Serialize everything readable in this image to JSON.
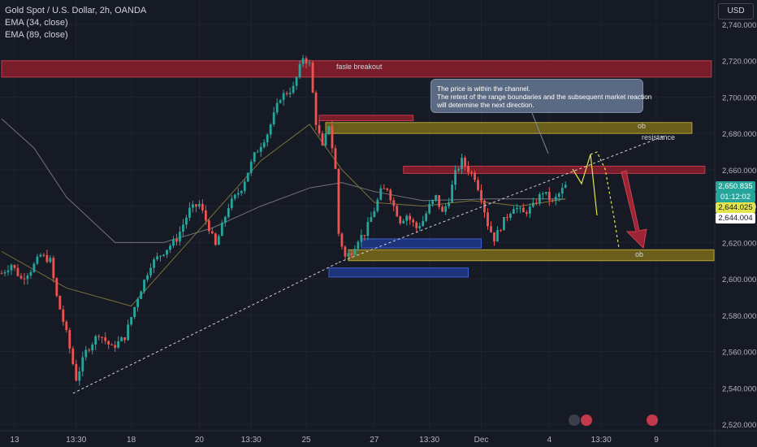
{
  "header": {
    "symbol_line": "Gold Spot / U.S. Dollar, 2h, OANDA",
    "ema1": "EMA (34, close)",
    "ema2": "EMA (89, close)"
  },
  "currency_button": "USD",
  "annotations": {
    "breakout_label": "fasle breakout",
    "ob_upper": "ob",
    "ob_lower": "ob",
    "resistance": "resistance",
    "callout_line1": "The price is within the channel.",
    "callout_line2": "The retest of the range boundaries and the subsequent market reaction",
    "callout_line3": "will determine the next direction."
  },
  "price_tags": {
    "last": "2,650.835",
    "countdown": "01:12:02",
    "ema34": "2,644.025",
    "ema89": "2,644.004"
  },
  "colors": {
    "background": "#161a25",
    "up": "#26a69a",
    "down": "#ef5350",
    "supply_zone": "#8b1e2c",
    "ob_zone": "#7a6b1a",
    "demand_blue": "#1e3a8a",
    "ema34": "#8a7b3a",
    "ema89": "#8a8a8a",
    "projection": "#e3e34a",
    "arrow": "#b3263a"
  },
  "chart_data": {
    "type": "candlestick",
    "title": "Gold Spot / U.S. Dollar, 2h, OANDA",
    "ylim": [
      2515,
      2752
    ],
    "y_ticks": [
      "2,740.000",
      "2,720.000",
      "2,700.000",
      "2,680.000",
      "2,660.000",
      "2,640.000",
      "2,620.000",
      "2,600.000",
      "2,580.000",
      "2,560.000",
      "2,540.000",
      "2,520.000"
    ],
    "y_tick_values": [
      2740,
      2720,
      2700,
      2680,
      2660,
      2640,
      2620,
      2600,
      2580,
      2560,
      2540,
      2520
    ],
    "x_ticks": [
      "13",
      "13:30",
      "18",
      "20",
      "13:30",
      "25",
      "27",
      "13:30",
      "Dec",
      "4",
      "13:30",
      "9"
    ],
    "x_tick_bar_index": [
      4,
      23,
      40,
      61,
      77,
      94,
      115,
      132,
      148,
      169,
      185,
      202
    ],
    "price_path": [
      [
        0,
        2603
      ],
      [
        3,
        2608
      ],
      [
        6,
        2600
      ],
      [
        9,
        2605
      ],
      [
        12,
        2613
      ],
      [
        15,
        2610
      ],
      [
        17,
        2590
      ],
      [
        20,
        2570
      ],
      [
        23,
        2545
      ],
      [
        26,
        2560
      ],
      [
        30,
        2570
      ],
      [
        34,
        2562
      ],
      [
        38,
        2568
      ],
      [
        42,
        2590
      ],
      [
        46,
        2608
      ],
      [
        50,
        2615
      ],
      [
        54,
        2622
      ],
      [
        58,
        2638
      ],
      [
        61,
        2641
      ],
      [
        64,
        2628
      ],
      [
        66,
        2618
      ],
      [
        70,
        2640
      ],
      [
        74,
        2650
      ],
      [
        78,
        2668
      ],
      [
        82,
        2680
      ],
      [
        86,
        2700
      ],
      [
        90,
        2705
      ],
      [
        93,
        2722
      ],
      [
        95,
        2718
      ],
      [
        97,
        2686
      ],
      [
        99,
        2672
      ],
      [
        101,
        2685
      ],
      [
        103,
        2660
      ],
      [
        104,
        2625
      ],
      [
        106,
        2612
      ],
      [
        108,
        2615
      ],
      [
        110,
        2622
      ],
      [
        112,
        2625
      ],
      [
        115,
        2638
      ],
      [
        117,
        2648
      ],
      [
        119,
        2650
      ],
      [
        121,
        2640
      ],
      [
        123,
        2632
      ],
      [
        125,
        2635
      ],
      [
        128,
        2628
      ],
      [
        130,
        2632
      ],
      [
        132,
        2640
      ],
      [
        134,
        2645
      ],
      [
        136,
        2636
      ],
      [
        138,
        2644
      ],
      [
        140,
        2658
      ],
      [
        142,
        2665
      ],
      [
        144,
        2660
      ],
      [
        146,
        2656
      ],
      [
        148,
        2645
      ],
      [
        150,
        2630
      ],
      [
        152,
        2622
      ],
      [
        155,
        2632
      ],
      [
        158,
        2640
      ],
      [
        161,
        2636
      ],
      [
        164,
        2640
      ],
      [
        167,
        2648
      ],
      [
        170,
        2642
      ],
      [
        173,
        2649
      ],
      [
        174,
        2651
      ]
    ],
    "candles_count": 175,
    "ema34_path": [
      [
        0,
        2615
      ],
      [
        20,
        2595
      ],
      [
        40,
        2585
      ],
      [
        60,
        2625
      ],
      [
        80,
        2665
      ],
      [
        95,
        2685
      ],
      [
        105,
        2660
      ],
      [
        115,
        2642
      ],
      [
        130,
        2640
      ],
      [
        145,
        2643
      ],
      [
        160,
        2640
      ],
      [
        174,
        2644
      ]
    ],
    "ema89_path": [
      [
        0,
        2688
      ],
      [
        10,
        2672
      ],
      [
        20,
        2645
      ],
      [
        35,
        2620
      ],
      [
        50,
        2620
      ],
      [
        65,
        2628
      ],
      [
        80,
        2640
      ],
      [
        95,
        2650
      ],
      [
        105,
        2653
      ],
      [
        115,
        2648
      ],
      [
        130,
        2643
      ],
      [
        150,
        2644
      ],
      [
        174,
        2644
      ]
    ],
    "zones": [
      {
        "name": "fasle breakout",
        "top": 2720,
        "bottom": 2711,
        "from": 0,
        "to": 219
      },
      {
        "name": "supply-small",
        "top": 2690,
        "bottom": 2687,
        "from": 98,
        "to": 127
      },
      {
        "name": "ob",
        "top": 2686,
        "bottom": 2680,
        "from": 100,
        "to": 213
      },
      {
        "name": "resistance-zone",
        "top": 2662,
        "bottom": 2658,
        "from": 124,
        "to": 217
      },
      {
        "name": "demand-blue-1",
        "top": 2622,
        "bottom": 2617,
        "from": 111,
        "to": 148
      },
      {
        "name": "ob",
        "top": 2616,
        "bottom": 2610,
        "from": 107,
        "to": 220
      },
      {
        "name": "demand-blue-2",
        "top": 2606,
        "bottom": 2601,
        "from": 101,
        "to": 144
      }
    ],
    "trendlines": [
      {
        "name": "lower-trendline",
        "from": [
          22,
          2537
        ],
        "to": [
          104,
          2609
        ]
      },
      {
        "name": "lower-trendline-ext",
        "from": [
          104,
          2609
        ],
        "to": [
          205,
          2679
        ]
      }
    ]
  }
}
